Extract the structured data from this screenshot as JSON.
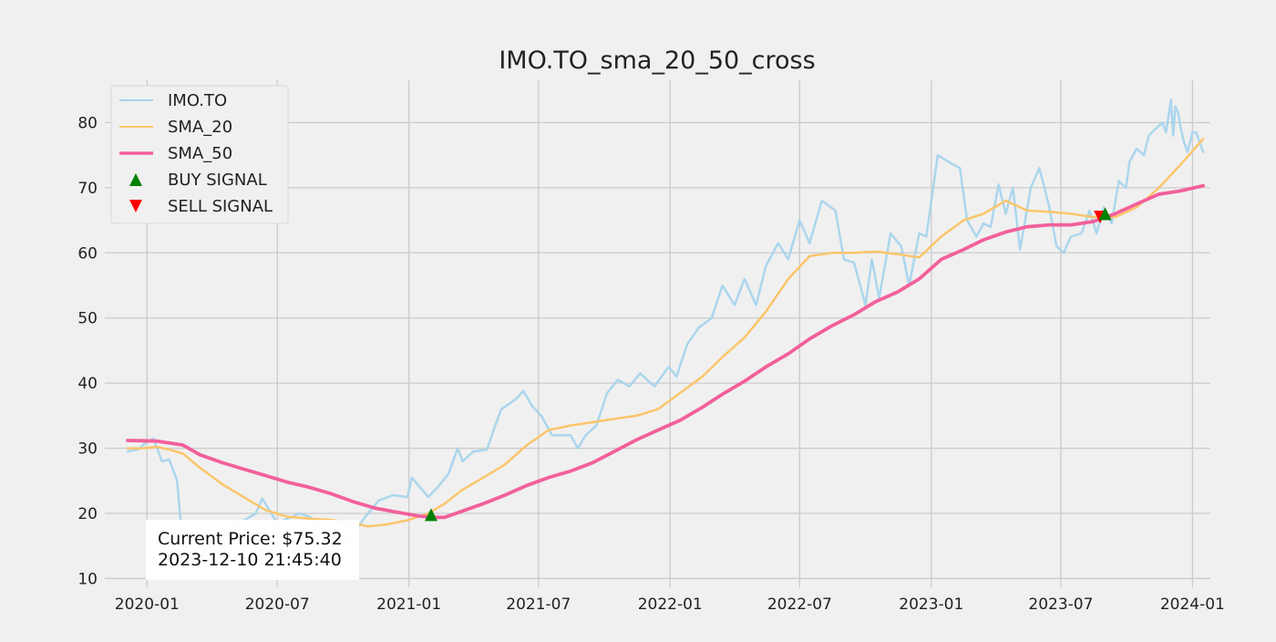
{
  "chart_data": {
    "type": "line",
    "title": "IMO.TO_sma_20_50_cross",
    "xlabel": "",
    "ylabel": "",
    "xlim": [
      "2019-11-03",
      "2024-01-26"
    ],
    "ylim": [
      9.5,
      86.5
    ],
    "x_ticks": [
      "2020-01",
      "2020-07",
      "2021-01",
      "2021-07",
      "2022-01",
      "2022-07",
      "2023-01",
      "2023-07",
      "2024-01"
    ],
    "y_ticks": [
      10,
      20,
      30,
      40,
      50,
      60,
      70,
      80
    ],
    "grid": true,
    "legend_position": "top-left",
    "colors": {
      "price": "#a6d4ec",
      "sma20": "#fbc56a",
      "sma50": "#f2609a",
      "buy": "#008000",
      "sell": "#ff0000",
      "grid": "#cbcbcb",
      "background": "#f0f0f0"
    },
    "series": [
      {
        "name": "IMO.TO",
        "points": [
          [
            "2019-12-05",
            29.5
          ],
          [
            "2019-12-19",
            29.8
          ],
          [
            "2020-01-01",
            31.0
          ],
          [
            "2020-01-10",
            31.5
          ],
          [
            "2020-01-22",
            28.0
          ],
          [
            "2020-02-01",
            28.3
          ],
          [
            "2020-02-12",
            25.0
          ],
          [
            "2020-02-20",
            15.0
          ],
          [
            "2020-03-10",
            12.0
          ],
          [
            "2020-04-01",
            16.0
          ],
          [
            "2020-05-01",
            18.0
          ],
          [
            "2020-06-01",
            20.0
          ],
          [
            "2020-06-10",
            22.3
          ],
          [
            "2020-07-01",
            18.5
          ],
          [
            "2020-08-01",
            20.0
          ],
          [
            "2020-08-15",
            19.5
          ],
          [
            "2020-09-01",
            18.0
          ],
          [
            "2020-09-20",
            14.5
          ],
          [
            "2020-10-10",
            16.0
          ],
          [
            "2020-11-01",
            19.5
          ],
          [
            "2020-11-20",
            22.0
          ],
          [
            "2020-12-10",
            22.8
          ],
          [
            "2020-12-30",
            22.5
          ],
          [
            "2021-01-05",
            25.5
          ],
          [
            "2021-01-28",
            22.5
          ],
          [
            "2021-02-10",
            24.0
          ],
          [
            "2021-02-25",
            26.0
          ],
          [
            "2021-03-10",
            30.0
          ],
          [
            "2021-03-17",
            28.0
          ],
          [
            "2021-04-01",
            29.5
          ],
          [
            "2021-04-20",
            29.8
          ],
          [
            "2021-04-30",
            33.0
          ],
          [
            "2021-05-10",
            36.0
          ],
          [
            "2021-05-30",
            37.5
          ],
          [
            "2021-06-10",
            38.8
          ],
          [
            "2021-06-22",
            36.5
          ],
          [
            "2021-07-05",
            35.0
          ],
          [
            "2021-07-20",
            32.0
          ],
          [
            "2021-08-15",
            32.0
          ],
          [
            "2021-08-25",
            30.0
          ],
          [
            "2021-09-05",
            32.0
          ],
          [
            "2021-09-20",
            33.5
          ],
          [
            "2021-10-05",
            38.5
          ],
          [
            "2021-10-20",
            40.5
          ],
          [
            "2021-11-05",
            39.5
          ],
          [
            "2021-11-20",
            41.5
          ],
          [
            "2021-12-10",
            39.5
          ],
          [
            "2021-12-30",
            42.5
          ],
          [
            "2022-01-10",
            41.0
          ],
          [
            "2022-01-25",
            46.0
          ],
          [
            "2022-02-10",
            48.5
          ],
          [
            "2022-02-28",
            50.0
          ],
          [
            "2022-03-15",
            55.0
          ],
          [
            "2022-04-01",
            52.0
          ],
          [
            "2022-04-15",
            56.0
          ],
          [
            "2022-05-01",
            52.0
          ],
          [
            "2022-05-15",
            58.0
          ],
          [
            "2022-06-01",
            61.5
          ],
          [
            "2022-06-15",
            59.0
          ],
          [
            "2022-07-01",
            65.0
          ],
          [
            "2022-07-15",
            61.5
          ],
          [
            "2022-08-01",
            68.0
          ],
          [
            "2022-08-20",
            66.5
          ],
          [
            "2022-09-01",
            59.0
          ],
          [
            "2022-09-15",
            58.5
          ],
          [
            "2022-10-01",
            52.0
          ],
          [
            "2022-10-10",
            59.0
          ],
          [
            "2022-10-20",
            53.0
          ],
          [
            "2022-11-05",
            63.0
          ],
          [
            "2022-11-20",
            61.0
          ],
          [
            "2022-12-01",
            55.0
          ],
          [
            "2022-12-15",
            63.0
          ],
          [
            "2022-12-25",
            62.5
          ],
          [
            "2023-01-10",
            75.0
          ],
          [
            "2023-01-25",
            74.0
          ],
          [
            "2023-02-10",
            73.0
          ],
          [
            "2023-02-20",
            65.0
          ],
          [
            "2023-03-05",
            62.5
          ],
          [
            "2023-03-15",
            64.5
          ],
          [
            "2023-03-25",
            64.0
          ],
          [
            "2023-04-05",
            70.5
          ],
          [
            "2023-04-15",
            66.0
          ],
          [
            "2023-04-25",
            70.0
          ],
          [
            "2023-05-05",
            60.5
          ],
          [
            "2023-05-20",
            70.0
          ],
          [
            "2023-06-01",
            73.0
          ],
          [
            "2023-06-15",
            67.0
          ],
          [
            "2023-06-25",
            61.0
          ],
          [
            "2023-07-05",
            60.0
          ],
          [
            "2023-07-15",
            62.5
          ],
          [
            "2023-07-30",
            63.0
          ],
          [
            "2023-08-10",
            66.5
          ],
          [
            "2023-08-20",
            63.0
          ],
          [
            "2023-08-30",
            67.0
          ],
          [
            "2023-09-10",
            64.5
          ],
          [
            "2023-09-20",
            71.0
          ],
          [
            "2023-09-30",
            70.0
          ],
          [
            "2023-10-05",
            74.0
          ],
          [
            "2023-10-15",
            76.0
          ],
          [
            "2023-10-25",
            75.0
          ],
          [
            "2023-11-01",
            78.0
          ],
          [
            "2023-11-10",
            79.0
          ],
          [
            "2023-11-20",
            80.0
          ],
          [
            "2023-11-25",
            78.5
          ],
          [
            "2023-12-02",
            83.5
          ],
          [
            "2023-12-05",
            78.0
          ],
          [
            "2023-12-08",
            82.5
          ],
          [
            "2023-12-12",
            81.5
          ],
          [
            "2023-12-15",
            79.5
          ],
          [
            "2023-12-20",
            77.0
          ],
          [
            "2023-12-25",
            75.5
          ],
          [
            "2024-01-01",
            78.5
          ],
          [
            "2024-01-06",
            78.5
          ],
          [
            "2024-01-11",
            77.0
          ],
          [
            "2024-01-16",
            75.5
          ]
        ]
      },
      {
        "name": "SMA_20",
        "points": [
          [
            "2019-12-05",
            30.0
          ],
          [
            "2019-12-25",
            30.0
          ],
          [
            "2020-01-15",
            30.2
          ],
          [
            "2020-02-01",
            29.8
          ],
          [
            "2020-02-20",
            29.2
          ],
          [
            "2020-03-15",
            27.0
          ],
          [
            "2020-04-15",
            24.5
          ],
          [
            "2020-05-15",
            22.5
          ],
          [
            "2020-06-15",
            20.5
          ],
          [
            "2020-07-15",
            19.5
          ],
          [
            "2020-08-15",
            19.2
          ],
          [
            "2020-09-15",
            19.0
          ],
          [
            "2020-10-15",
            18.5
          ],
          [
            "2020-11-05",
            18.0
          ],
          [
            "2020-12-01",
            18.3
          ],
          [
            "2021-01-01",
            19.0
          ],
          [
            "2021-01-28",
            20.0
          ],
          [
            "2021-02-20",
            21.5
          ],
          [
            "2021-03-15",
            23.5
          ],
          [
            "2021-04-15",
            25.5
          ],
          [
            "2021-05-15",
            27.5
          ],
          [
            "2021-06-15",
            30.5
          ],
          [
            "2021-07-15",
            32.8
          ],
          [
            "2021-08-15",
            33.5
          ],
          [
            "2021-09-15",
            34.0
          ],
          [
            "2021-10-15",
            34.5
          ],
          [
            "2021-11-15",
            35.0
          ],
          [
            "2021-12-15",
            36.0
          ],
          [
            "2022-01-15",
            38.5
          ],
          [
            "2022-02-15",
            41.0
          ],
          [
            "2022-03-15",
            44.0
          ],
          [
            "2022-04-15",
            47.0
          ],
          [
            "2022-05-15",
            51.0
          ],
          [
            "2022-06-15",
            56.0
          ],
          [
            "2022-07-15",
            59.5
          ],
          [
            "2022-08-15",
            60.0
          ],
          [
            "2022-09-15",
            60.0
          ],
          [
            "2022-10-15",
            60.2
          ],
          [
            "2022-11-15",
            59.8
          ],
          [
            "2022-12-15",
            59.3
          ],
          [
            "2023-01-15",
            62.5
          ],
          [
            "2023-02-15",
            65.0
          ],
          [
            "2023-03-15",
            66.0
          ],
          [
            "2023-04-15",
            68.0
          ],
          [
            "2023-05-15",
            66.5
          ],
          [
            "2023-06-15",
            66.3
          ],
          [
            "2023-07-15",
            66.0
          ],
          [
            "2023-08-15",
            65.5
          ],
          [
            "2023-09-15",
            65.5
          ],
          [
            "2023-10-15",
            67.0
          ],
          [
            "2023-11-15",
            70.0
          ],
          [
            "2023-12-15",
            73.5
          ],
          [
            "2024-01-16",
            77.5
          ]
        ]
      },
      {
        "name": "SMA_50",
        "points": [
          [
            "2019-12-05",
            31.2
          ],
          [
            "2020-01-15",
            31.1
          ],
          [
            "2020-02-20",
            30.5
          ],
          [
            "2020-03-15",
            29.0
          ],
          [
            "2020-04-15",
            27.8
          ],
          [
            "2020-05-15",
            26.8
          ],
          [
            "2020-06-15",
            25.8
          ],
          [
            "2020-07-15",
            24.8
          ],
          [
            "2020-08-15",
            24.0
          ],
          [
            "2020-09-15",
            23.0
          ],
          [
            "2020-10-15",
            21.8
          ],
          [
            "2020-11-15",
            20.8
          ],
          [
            "2020-12-15",
            20.2
          ],
          [
            "2021-01-15",
            19.6
          ],
          [
            "2021-02-01",
            19.4
          ],
          [
            "2021-02-20",
            19.4
          ],
          [
            "2021-03-15",
            20.3
          ],
          [
            "2021-04-15",
            21.5
          ],
          [
            "2021-05-15",
            22.8
          ],
          [
            "2021-06-15",
            24.3
          ],
          [
            "2021-07-15",
            25.5
          ],
          [
            "2021-08-15",
            26.5
          ],
          [
            "2021-09-15",
            27.8
          ],
          [
            "2021-10-15",
            29.5
          ],
          [
            "2021-11-15",
            31.3
          ],
          [
            "2021-12-15",
            32.8
          ],
          [
            "2022-01-15",
            34.3
          ],
          [
            "2022-02-15",
            36.3
          ],
          [
            "2022-03-15",
            38.3
          ],
          [
            "2022-04-15",
            40.3
          ],
          [
            "2022-05-15",
            42.5
          ],
          [
            "2022-06-15",
            44.5
          ],
          [
            "2022-07-15",
            46.8
          ],
          [
            "2022-08-15",
            48.8
          ],
          [
            "2022-09-15",
            50.5
          ],
          [
            "2022-10-15",
            52.5
          ],
          [
            "2022-11-15",
            54.0
          ],
          [
            "2022-12-15",
            56.0
          ],
          [
            "2023-01-15",
            59.0
          ],
          [
            "2023-02-15",
            60.5
          ],
          [
            "2023-03-15",
            62.0
          ],
          [
            "2023-04-15",
            63.2
          ],
          [
            "2023-05-15",
            64.0
          ],
          [
            "2023-06-15",
            64.3
          ],
          [
            "2023-07-15",
            64.3
          ],
          [
            "2023-08-15",
            64.8
          ],
          [
            "2023-09-15",
            66.0
          ],
          [
            "2023-10-15",
            67.5
          ],
          [
            "2023-11-15",
            69.0
          ],
          [
            "2023-12-15",
            69.5
          ],
          [
            "2024-01-16",
            70.3
          ]
        ]
      }
    ],
    "signals": {
      "buy": [
        [
          "2021-02-01",
          19.8
        ],
        [
          "2023-09-01",
          66.0
        ]
      ],
      "sell": [
        [
          "2023-08-25",
          65.5
        ]
      ]
    },
    "legend": [
      {
        "label": "IMO.TO",
        "kind": "line",
        "color": "#a6d4ec",
        "width": 2
      },
      {
        "label": "SMA_20",
        "kind": "line",
        "color": "#fbc56a",
        "width": 2
      },
      {
        "label": "SMA_50",
        "kind": "line",
        "color": "#f2609a",
        "width": 3.5
      },
      {
        "label": "BUY SIGNAL",
        "kind": "up-triangle",
        "color": "#008000"
      },
      {
        "label": "SELL SIGNAL",
        "kind": "down-triangle",
        "color": "#ff0000"
      }
    ],
    "annotation": {
      "line1": "Current Price: $75.32",
      "line2": "2023-12-10 21:45:40"
    }
  }
}
